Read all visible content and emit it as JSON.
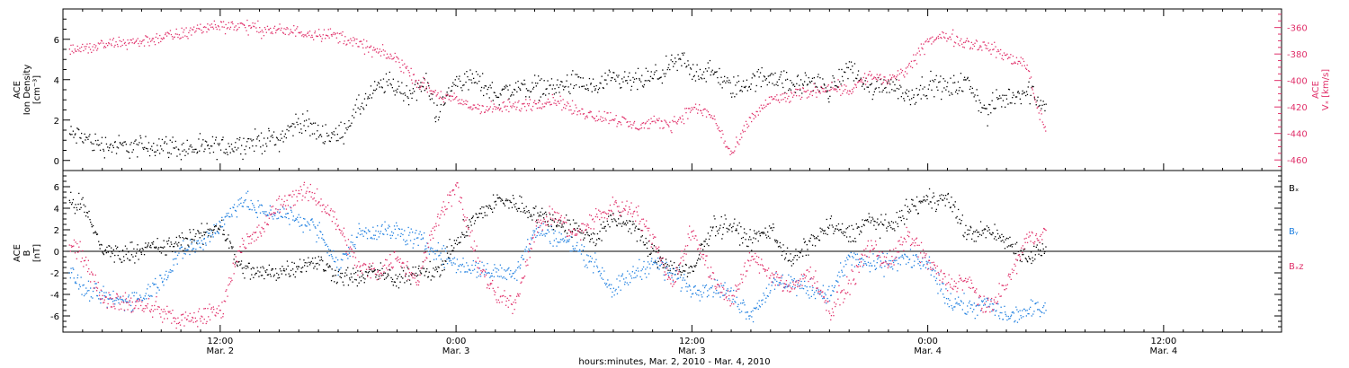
{
  "xlabel": "hours:minutes, Mar.  2, 2010 - Mar.  4, 2010",
  "x_ticks": [
    {
      "hour": 12,
      "time": "12:00",
      "date": "Mar. 2"
    },
    {
      "hour": 24,
      "time": "0:00",
      "date": "Mar. 3"
    },
    {
      "hour": 36,
      "time": "12:00",
      "date": "Mar. 3"
    },
    {
      "hour": 48,
      "time": "0:00",
      "date": "Mar. 4"
    },
    {
      "hour": 60,
      "time": "12:00",
      "date": "Mar. 4"
    }
  ],
  "chart_data": [
    {
      "type": "scatter",
      "panel": "top",
      "xlim": [
        4,
        66
      ],
      "x_units": "hours since Mar. 2, 2010 0:00",
      "ylabel_left": [
        "ACE",
        "Ion Density",
        "[cm⁻³]"
      ],
      "ylim_left": [
        -0.5,
        7.5
      ],
      "yticks_left": [
        0,
        2,
        4,
        6
      ],
      "ylabel_right": [
        "ACE",
        "Vₓ [km/s]"
      ],
      "ylim_right": [
        -468,
        -346
      ],
      "yticks_right": [
        -460,
        -440,
        -420,
        -400,
        -380,
        -360
      ],
      "colors": {
        "density": "#000000",
        "vx": "#e0306a"
      },
      "series": [
        {
          "name": "Ion Density",
          "axis": "left",
          "x": [
            4.3,
            5,
            5.5,
            6,
            7,
            8,
            9,
            10,
            11,
            12,
            13,
            14,
            15,
            16,
            17,
            18,
            19,
            20,
            20.5,
            21,
            21.5,
            22,
            22.5,
            23,
            24,
            25,
            26,
            27,
            28,
            29,
            30,
            31,
            32,
            33,
            34,
            35,
            35.5,
            36,
            37,
            38,
            39,
            40,
            41,
            42,
            43,
            44,
            45,
            46,
            47,
            48,
            49,
            50,
            51,
            51.5,
            52,
            53,
            54
          ],
          "y": [
            1.3,
            1.2,
            0.9,
            0.8,
            0.7,
            0.7,
            0.8,
            0.6,
            0.6,
            0.7,
            0.8,
            1.0,
            1.1,
            2.0,
            1.4,
            1.2,
            2.6,
            3.6,
            3.9,
            3.6,
            3.3,
            3.6,
            3.8,
            2.3,
            4.0,
            4.0,
            3.3,
            3.6,
            3.7,
            3.6,
            3.9,
            3.6,
            4.0,
            3.9,
            4.1,
            4.7,
            5.0,
            4.4,
            4.4,
            3.6,
            3.9,
            4.3,
            3.7,
            4.0,
            3.5,
            4.7,
            3.5,
            3.9,
            3.2,
            3.8,
            3.6,
            3.9,
            2.3,
            3.0,
            3.1,
            3.5,
            2.8
          ]
        },
        {
          "name": "Vx",
          "axis": "right",
          "x": [
            4.3,
            5,
            6,
            7,
            8,
            9,
            10,
            11,
            12,
            13,
            14,
            15,
            16,
            17,
            18,
            19,
            20,
            21,
            22,
            23,
            24,
            25,
            26,
            27,
            28,
            29,
            30,
            31,
            32,
            33,
            34,
            35,
            35.5,
            36,
            37,
            38,
            39,
            40,
            41,
            42,
            43,
            44,
            45,
            46,
            47,
            48,
            49,
            50,
            51,
            52,
            53,
            53.5,
            54
          ],
          "y": [
            -376,
            -376,
            -373,
            -371,
            -370,
            -367,
            -365,
            -360,
            -358,
            -358,
            -361,
            -362,
            -363,
            -364,
            -366,
            -372,
            -378,
            -384,
            -400,
            -410,
            -415,
            -420,
            -421,
            -419,
            -417,
            -414,
            -422,
            -426,
            -428,
            -434,
            -432,
            -432,
            -427,
            -420,
            -426,
            -456,
            -428,
            -414,
            -412,
            -408,
            -404,
            -407,
            -396,
            -400,
            -391,
            -369,
            -366,
            -371,
            -374,
            -382,
            -387,
            -417,
            -437
          ]
        }
      ]
    },
    {
      "type": "scatter",
      "panel": "bottom",
      "xlim": [
        4,
        66
      ],
      "x_units": "hours since Mar. 2, 2010 0:00",
      "ylabel": [
        "ACE",
        "B",
        "[nT]"
      ],
      "ylim": [
        -7.5,
        7.5
      ],
      "yticks": [
        -6,
        -4,
        -2,
        0,
        2,
        4,
        6
      ],
      "zero_line": true,
      "legend": [
        "Bₓ",
        "Bᵧ",
        "Bₓz"
      ],
      "series": [
        {
          "name": "Bx",
          "color": "#000000",
          "x": [
            4.3,
            5,
            6,
            7,
            8,
            9,
            10,
            11,
            12,
            13,
            14,
            15,
            16,
            17,
            18,
            19,
            20,
            21,
            22,
            23,
            24,
            25,
            26,
            27,
            28,
            29,
            30,
            31,
            32,
            33,
            34,
            35,
            36,
            37,
            38,
            39,
            40,
            41,
            42,
            43,
            44,
            45,
            46,
            47,
            48,
            49,
            50,
            51,
            52,
            53,
            54
          ],
          "y": [
            4.5,
            4.3,
            0.2,
            -0.3,
            0.4,
            0.3,
            1.0,
            1.5,
            2.5,
            -1.5,
            -2.0,
            -1.8,
            -1.2,
            -1.0,
            -2.2,
            -2.4,
            -1.8,
            -2.8,
            -1.5,
            -2.0,
            1.0,
            3.2,
            4.7,
            4.5,
            3.6,
            2.8,
            2.2,
            1.2,
            3.0,
            2.4,
            -0.3,
            -1.5,
            -2.0,
            2.4,
            2.4,
            1.0,
            2.2,
            -1.0,
            0.8,
            2.5,
            1.5,
            3.0,
            2.2,
            4.0,
            4.8,
            5.0,
            1.6,
            2.0,
            1.0,
            -0.5,
            0.5
          ]
        },
        {
          "name": "By",
          "color": "#1e7fe0",
          "x": [
            4.3,
            5,
            6,
            7,
            8,
            9,
            10,
            11,
            12,
            13,
            14,
            15,
            16,
            17,
            18,
            19,
            20,
            21,
            22,
            23,
            24,
            25,
            26,
            27,
            28,
            29,
            30,
            31,
            32,
            33,
            34,
            35,
            36,
            37,
            38,
            39,
            40,
            41,
            42,
            43,
            44,
            45,
            46,
            47,
            48,
            49,
            50,
            51,
            52,
            53,
            54
          ],
          "y": [
            -1.8,
            -3.5,
            -4.2,
            -4.6,
            -4.1,
            -2.6,
            0.0,
            0.8,
            2.5,
            4.8,
            3.8,
            3.6,
            3.0,
            2.0,
            -1.5,
            1.8,
            2.0,
            1.8,
            1.2,
            0.0,
            -1.2,
            -1.5,
            -2.0,
            -1.8,
            2.0,
            1.5,
            0.5,
            -1.0,
            -3.5,
            -2.0,
            -1.0,
            -2.0,
            -3.5,
            -3.2,
            -4.0,
            -5.8,
            -3.2,
            -2.8,
            -3.5,
            -4.0,
            -0.5,
            -1.2,
            -1.0,
            -0.6,
            -1.3,
            -4.5,
            -5.2,
            -4.8,
            -6.0,
            -5.5,
            -5.0
          ]
        },
        {
          "name": "Bz",
          "color": "#e0306a",
          "x": [
            4.3,
            5,
            6,
            7,
            8,
            9,
            10,
            11,
            12,
            13,
            14,
            15,
            16,
            17,
            18,
            19,
            20,
            21,
            22,
            23,
            24,
            25,
            26,
            27,
            28,
            29,
            30,
            31,
            32,
            33,
            34,
            35,
            36,
            37,
            38,
            39,
            40,
            41,
            42,
            43,
            44,
            45,
            46,
            47,
            48,
            49,
            50,
            51,
            52,
            53,
            54
          ],
          "y": [
            1.2,
            -0.5,
            -4.2,
            -4.7,
            -5.0,
            -5.5,
            -6.5,
            -6.0,
            -5.5,
            0.5,
            1.8,
            4.5,
            5.5,
            5.0,
            2.5,
            -1.5,
            -1.8,
            -0.5,
            -2.8,
            3.2,
            6.0,
            -0.5,
            -4.2,
            -4.8,
            2.2,
            3.5,
            1.5,
            3.0,
            4.2,
            4.0,
            1.2,
            -3.0,
            2.2,
            -2.5,
            -4.5,
            -0.5,
            -2.0,
            -3.5,
            -1.8,
            -5.5,
            -3.0,
            0.5,
            -1.0,
            1.5,
            -1.0,
            -3.0,
            -2.8,
            -5.5,
            -3.0,
            1.0,
            2.0
          ]
        }
      ]
    }
  ]
}
